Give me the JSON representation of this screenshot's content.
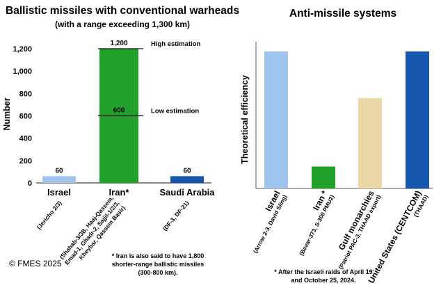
{
  "chart_data": [
    {
      "type": "bar",
      "title": "Ballistic missiles with conventional warheads",
      "subtitle": "(with a range exceeding 1,300 km)",
      "ylabel": "Number",
      "ylim": [
        0,
        1200
      ],
      "yticks": [
        "0",
        "200",
        "400",
        "600",
        "800",
        "1,000",
        "1,200"
      ],
      "ytick_values": [
        0,
        200,
        400,
        600,
        800,
        1000,
        1200
      ],
      "categories": [
        "Israel",
        "Iran*",
        "Saudi Arabia"
      ],
      "sublabels": [
        "(Jericho 2/3)",
        [
          "(Shahab-3/3B, Haaj-Qassem,",
          "Emad-1, Ghadr-2, Sajjil-1/2/3,",
          "Kheybar, Qassem Basir)"
        ],
        "(DF-3, DF-21)"
      ],
      "values": [
        60,
        1200,
        60
      ],
      "value_labels": [
        "60",
        "1,200",
        "60"
      ],
      "colors": [
        "#9fc5ee",
        "#22a12a",
        "#1457ad"
      ],
      "estimates": [
        {
          "value": 1200,
          "label": "High estimation"
        },
        {
          "value": 600,
          "label": "Low estimation",
          "value_label": "600"
        }
      ],
      "footnote": [
        "* Iran is also said to have 1,800",
        "shorter-range ballistic missiles",
        "(300-800 km)."
      ]
    },
    {
      "type": "bar",
      "title": "Anti-missile systems",
      "ylabel": "Theoretical efficiency",
      "ylim": [
        0,
        100
      ],
      "categories": [
        "Israel",
        "Iran *",
        "Gulf monarchies",
        "United States (CENTCOM)"
      ],
      "sublabels": [
        "(Arrow 2-3, David Sling)",
        "(Bavar-373, S-300 PMU2)",
        "(Patriot PAC-3, THAAD export)",
        "(THAAD)"
      ],
      "values": [
        100,
        16,
        66,
        100
      ],
      "colors": [
        "#9fc5ee",
        "#22a12a",
        "#ecd8a6",
        "#1457ad"
      ],
      "footnote": [
        "* After the Israeli raids of April 19",
        "and October 25, 2024."
      ]
    }
  ],
  "copyright": "© FMES 2025"
}
